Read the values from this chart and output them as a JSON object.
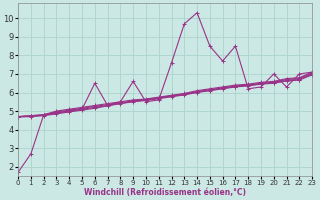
{
  "xlabel": "Windchill (Refroidissement éolien,°C)",
  "bg_color": "#cce8e4",
  "grid_color": "#aad4cc",
  "line_color": "#993388",
  "xlim": [
    0,
    23
  ],
  "ylim": [
    1.5,
    10.8
  ],
  "xticks": [
    0,
    1,
    2,
    3,
    4,
    5,
    6,
    7,
    8,
    9,
    10,
    11,
    12,
    13,
    14,
    15,
    16,
    17,
    18,
    19,
    20,
    21,
    22,
    23
  ],
  "yticks": [
    2,
    3,
    4,
    5,
    6,
    7,
    8,
    9,
    10
  ],
  "lines": [
    {
      "x": [
        0,
        1,
        2,
        3,
        4,
        5,
        6,
        7,
        8,
        9,
        10,
        11,
        12,
        13,
        14,
        15,
        16,
        17,
        18,
        19,
        20,
        21,
        22,
        23
      ],
      "y": [
        1.7,
        2.7,
        4.8,
        4.9,
        5.0,
        5.1,
        6.5,
        5.3,
        5.5,
        6.6,
        5.5,
        5.6,
        7.6,
        9.7,
        10.3,
        8.5,
        7.7,
        8.5,
        6.2,
        6.3,
        7.0,
        6.3,
        7.0,
        7.1
      ]
    },
    {
      "x": [
        0,
        1,
        2,
        3,
        4,
        5,
        6,
        7,
        8,
        9,
        10,
        11,
        12,
        13,
        14,
        15,
        16,
        17,
        18,
        19,
        20,
        21,
        22,
        23
      ],
      "y": [
        4.7,
        4.75,
        4.8,
        5.0,
        5.1,
        5.2,
        5.3,
        5.4,
        5.5,
        5.6,
        5.65,
        5.75,
        5.85,
        5.95,
        6.1,
        6.2,
        6.3,
        6.4,
        6.45,
        6.55,
        6.6,
        6.75,
        6.8,
        7.1
      ]
    },
    {
      "x": [
        0,
        1,
        2,
        3,
        4,
        5,
        6,
        7,
        8,
        9,
        10,
        11,
        12,
        13,
        14,
        15,
        16,
        17,
        18,
        19,
        20,
        21,
        22,
        23
      ],
      "y": [
        4.7,
        4.75,
        4.8,
        4.95,
        5.05,
        5.15,
        5.25,
        5.35,
        5.45,
        5.55,
        5.62,
        5.72,
        5.82,
        5.92,
        6.05,
        6.15,
        6.25,
        6.35,
        6.4,
        6.5,
        6.55,
        6.7,
        6.75,
        7.05
      ]
    },
    {
      "x": [
        0,
        1,
        2,
        3,
        4,
        5,
        6,
        7,
        8,
        9,
        10,
        11,
        12,
        13,
        14,
        15,
        16,
        17,
        18,
        19,
        20,
        21,
        22,
        23
      ],
      "y": [
        4.7,
        4.72,
        4.78,
        4.9,
        5.0,
        5.1,
        5.2,
        5.3,
        5.42,
        5.52,
        5.6,
        5.7,
        5.8,
        5.9,
        6.02,
        6.12,
        6.22,
        6.32,
        6.38,
        6.47,
        6.52,
        6.65,
        6.7,
        7.0
      ]
    },
    {
      "x": [
        0,
        1,
        2,
        3,
        4,
        5,
        6,
        7,
        8,
        9,
        10,
        11,
        12,
        13,
        14,
        15,
        16,
        17,
        18,
        19,
        20,
        21,
        22,
        23
      ],
      "y": [
        4.68,
        4.7,
        4.75,
        4.85,
        4.95,
        5.05,
        5.15,
        5.28,
        5.4,
        5.5,
        5.57,
        5.67,
        5.77,
        5.87,
        6.0,
        6.1,
        6.2,
        6.3,
        6.36,
        6.45,
        6.5,
        6.62,
        6.67,
        6.95
      ]
    }
  ],
  "marker": "+",
  "markersize": 2.5,
  "linewidth": 0.8,
  "xlabel_fontsize": 5.5,
  "tick_fontsize_x": 5.0,
  "tick_fontsize_y": 6.0
}
